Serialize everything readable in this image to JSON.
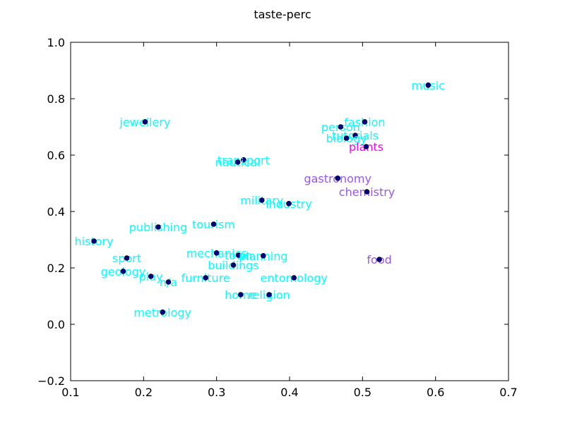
{
  "chart_data": {
    "type": "scatter",
    "title": "taste-perc",
    "xlabel": "",
    "ylabel": "",
    "xlim": [
      0.1,
      0.7
    ],
    "ylim": [
      -0.2,
      1.0
    ],
    "xticks": [
      0.1,
      0.2,
      0.3,
      0.4,
      0.5,
      0.6,
      0.7
    ],
    "xtick_labels": [
      "0.1",
      "0.2",
      "0.3",
      "0.4",
      "0.5",
      "0.6",
      "0.7"
    ],
    "yticks": [
      -0.2,
      0.0,
      0.2,
      0.4,
      0.6,
      0.8,
      1.0
    ],
    "ytick_labels": [
      "−0.2",
      "0.0",
      "0.2",
      "0.4",
      "0.6",
      "0.8",
      "1.0"
    ],
    "grid": false,
    "marker_color": "#000080",
    "points": [
      {
        "label": "music",
        "x": 0.59,
        "y": 0.848,
        "color": "#00ffff"
      },
      {
        "label": "fashion",
        "x": 0.503,
        "y": 0.718,
        "color": "#00ffff"
      },
      {
        "label": "person",
        "x": 0.47,
        "y": 0.7,
        "color": "#00ffff"
      },
      {
        "label": "tutorials",
        "x": 0.49,
        "y": 0.67,
        "color": "#00ffff"
      },
      {
        "label": "biology",
        "x": 0.478,
        "y": 0.66,
        "color": "#00ffff"
      },
      {
        "label": "plants",
        "x": 0.505,
        "y": 0.63,
        "color": "#ff00ff"
      },
      {
        "label": "jewellery",
        "x": 0.202,
        "y": 0.718,
        "color": "#00ffff"
      },
      {
        "label": "transport",
        "x": 0.337,
        "y": 0.583,
        "color": "#00ffff"
      },
      {
        "label": "nautical",
        "x": 0.329,
        "y": 0.575,
        "color": "#00ffff"
      },
      {
        "label": "gastronomy",
        "x": 0.466,
        "y": 0.518,
        "color": "#9955ee"
      },
      {
        "label": "chemistry",
        "x": 0.506,
        "y": 0.47,
        "color": "#9955ee"
      },
      {
        "label": "military",
        "x": 0.362,
        "y": 0.44,
        "color": "#00ffff"
      },
      {
        "label": "industry",
        "x": 0.399,
        "y": 0.428,
        "color": "#00ffff"
      },
      {
        "label": "tourism",
        "x": 0.296,
        "y": 0.355,
        "color": "#00ffff"
      },
      {
        "label": "publishing",
        "x": 0.22,
        "y": 0.345,
        "color": "#00ffff"
      },
      {
        "label": "history",
        "x": 0.132,
        "y": 0.295,
        "color": "#00ffff"
      },
      {
        "label": "mechanics",
        "x": 0.3,
        "y": 0.253,
        "color": "#00ffff"
      },
      {
        "label": "town",
        "x": 0.33,
        "y": 0.245,
        "color": "#00ffff"
      },
      {
        "label": "planning",
        "x": 0.364,
        "y": 0.243,
        "color": "#00ffff"
      },
      {
        "label": "food",
        "x": 0.523,
        "y": 0.23,
        "color": "#9955ee"
      },
      {
        "label": "sport",
        "x": 0.177,
        "y": 0.235,
        "color": "#00ffff"
      },
      {
        "label": "buildings",
        "x": 0.323,
        "y": 0.21,
        "color": "#00ffff"
      },
      {
        "label": "geology",
        "x": 0.172,
        "y": 0.188,
        "color": "#00ffff"
      },
      {
        "label": "play",
        "x": 0.21,
        "y": 0.17,
        "color": "#00ffff"
      },
      {
        "label": "furniture",
        "x": 0.285,
        "y": 0.165,
        "color": "#00ffff"
      },
      {
        "label": "entomology",
        "x": 0.406,
        "y": 0.165,
        "color": "#00ffff"
      },
      {
        "label": "n/a",
        "x": 0.234,
        "y": 0.15,
        "color": "#00ffff"
      },
      {
        "label": "home",
        "x": 0.333,
        "y": 0.105,
        "color": "#00ffff"
      },
      {
        "label": "religion",
        "x": 0.372,
        "y": 0.105,
        "color": "#00ffff"
      },
      {
        "label": "metrology",
        "x": 0.226,
        "y": 0.043,
        "color": "#00ffff"
      }
    ]
  }
}
